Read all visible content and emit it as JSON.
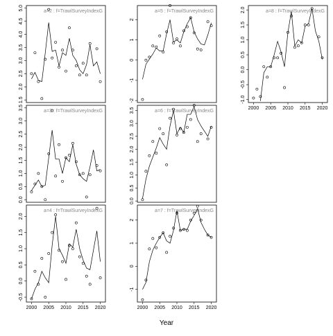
{
  "x_label": "Year",
  "chart_data": [
    {
      "type": "line",
      "title": "a=2  :  f=TrawlSurveyIndexG",
      "x": [
        2000,
        2001,
        2002,
        2003,
        2004,
        2005,
        2006,
        2007,
        2008,
        2009,
        2010,
        2011,
        2012,
        2013,
        2014,
        2015,
        2016,
        2017,
        2018,
        2019,
        2020
      ],
      "xlim": [
        1998.5,
        2021.5
      ],
      "xticks": [
        2000,
        2005,
        2010,
        2015,
        2020
      ],
      "show_x_tick_labels": false,
      "ylim": [
        1.4,
        5.1
      ],
      "yticks": [
        {
          "value": 1.5,
          "label": "1.5"
        },
        {
          "value": 2,
          "label": "2.0"
        },
        {
          "value": 2.5,
          "label": "2.5"
        },
        {
          "value": 3,
          "label": "3.0"
        },
        {
          "value": 3.5,
          "label": "3.5"
        },
        {
          "value": 4,
          "label": "4.0"
        },
        {
          "value": 4.5,
          "label": "4.5"
        },
        {
          "value": 5,
          "label": "5.0"
        }
      ],
      "series": [
        {
          "marker": "circle",
          "color": "#000000",
          "values": [
            2.5,
            3.3,
            2.2,
            1.55,
            3.05,
            4.95,
            3.1,
            3.7,
            2.75,
            3.4,
            2.6,
            4.25,
            3.4,
            2.8,
            2.45,
            2.9,
            2.45,
            3.65,
            null,
            3.45,
            2.2
          ]
        },
        {
          "marker": "none",
          "color": "#000000",
          "values": [
            2.3,
            2.55,
            2.25,
            2.2,
            3.3,
            4.45,
            3.35,
            3.4,
            2.8,
            3.3,
            3.2,
            3.85,
            3.2,
            3.0,
            2.65,
            2.5,
            2.85,
            3.6,
            2.8,
            2.95,
            2.5
          ]
        }
      ]
    },
    {
      "type": "line",
      "title": "a=3  :  f=TrawlSurveyIndexG",
      "x": [
        2000,
        2001,
        2002,
        2003,
        2004,
        2005,
        2006,
        2007,
        2008,
        2009,
        2010,
        2011,
        2012,
        2013,
        2014,
        2015,
        2016,
        2017,
        2018,
        2019,
        2020
      ],
      "xlim": [
        1998.5,
        2021.5
      ],
      "xticks": [
        2000,
        2005,
        2010,
        2015,
        2020
      ],
      "show_x_tick_labels": false,
      "ylim": [
        -0.1,
        3.6
      ],
      "yticks": [
        {
          "value": 0,
          "label": "0.0"
        },
        {
          "value": 0.5,
          "label": "0.5"
        },
        {
          "value": 1,
          "label": "1.0"
        },
        {
          "value": 1.5,
          "label": "1.5"
        },
        {
          "value": 2,
          "label": "2.0"
        },
        {
          "value": 2.5,
          "label": "2.5"
        },
        {
          "value": 3,
          "label": "3.0"
        },
        {
          "value": 3.5,
          "label": "3.5"
        }
      ],
      "series": [
        {
          "marker": "circle",
          "color": "#000000",
          "values": [
            0.3,
            0.6,
            1.0,
            0.5,
            0.0,
            1.75,
            3.4,
            0.9,
            2.1,
            0.7,
            1.6,
            1.7,
            2.15,
            1.45,
            0.95,
            1.0,
            0.1,
            0.95,
            null,
            1.3,
            1.1
          ]
        },
        {
          "marker": "none",
          "color": "#000000",
          "values": [
            0.35,
            0.55,
            0.75,
            0.5,
            0.55,
            1.6,
            2.65,
            1.55,
            1.55,
            1.0,
            1.6,
            1.45,
            2.1,
            1.35,
            0.95,
            0.8,
            0.7,
            1.25,
            1.9,
            1.1,
            1.15
          ]
        }
      ]
    },
    {
      "type": "line",
      "title": "a=4  :  f=TrawlSurveyIndexG",
      "x": [
        2000,
        2001,
        2002,
        2003,
        2004,
        2005,
        2006,
        2007,
        2008,
        2009,
        2010,
        2011,
        2012,
        2013,
        2014,
        2015,
        2016,
        2017,
        2018,
        2019,
        2020
      ],
      "xlim": [
        1998.5,
        2021.5
      ],
      "xticks": [
        2000,
        2005,
        2010,
        2015,
        2020
      ],
      "show_x_tick_labels": true,
      "ylim": [
        -0.65,
        2.35
      ],
      "yticks": [
        {
          "value": -0.5,
          "label": "-0.5"
        },
        {
          "value": 0,
          "label": "0.0"
        },
        {
          "value": 0.5,
          "label": "0.5"
        },
        {
          "value": 1,
          "label": "1.0"
        },
        {
          "value": 1.5,
          "label": "1.5"
        },
        {
          "value": 2,
          "label": "2.0"
        }
      ],
      "series": [
        {
          "marker": "circle",
          "color": "#000000",
          "values": [
            -0.55,
            0.3,
            -0.1,
            0.7,
            -0.5,
            0.85,
            1.5,
            2.05,
            0.95,
            0.6,
            0.05,
            1.1,
            1.0,
            1.8,
            0.75,
            0.55,
            0.15,
            -0.1,
            null,
            2.25,
            0.1
          ]
        },
        {
          "marker": "none",
          "color": "#000000",
          "values": [
            -0.55,
            -0.25,
            -0.05,
            0.3,
            0.1,
            -0.05,
            1.1,
            2.0,
            1.0,
            0.8,
            0.55,
            1.15,
            1.05,
            1.6,
            1.0,
            0.65,
            0.4,
            0.35,
            0.95,
            1.55,
            0.6
          ]
        }
      ]
    },
    {
      "type": "line",
      "title": "a=5  :  f=TrawlSurveyIndexG",
      "x": [
        2000,
        2001,
        2002,
        2003,
        2004,
        2005,
        2006,
        2007,
        2008,
        2009,
        2010,
        2011,
        2012,
        2013,
        2014,
        2015,
        2016,
        2017,
        2018,
        2019,
        2020
      ],
      "xlim": [
        1998.5,
        2021.5
      ],
      "xticks": [
        2000,
        2005,
        2010,
        2015,
        2020
      ],
      "show_x_tick_labels": false,
      "ylim": [
        -2.1,
        2.7
      ],
      "yticks": [
        -2,
        -1,
        0,
        1,
        2
      ],
      "series": [
        {
          "marker": "circle",
          "color": "#000000",
          "values": [
            -1.95,
            0.0,
            0.15,
            0.7,
            0.65,
            1.2,
            0.4,
            1.4,
            2.7,
            0.85,
            1.05,
            0.7,
            1.45,
            1.65,
            2.1,
            1.35,
            0.55,
            0.5,
            null,
            1.9,
            1.7
          ]
        },
        {
          "marker": "none",
          "color": "#000000",
          "values": [
            -0.95,
            -0.2,
            0.05,
            0.3,
            0.6,
            0.45,
            0.45,
            1.3,
            2.0,
            0.9,
            1.0,
            0.85,
            1.4,
            1.8,
            2.1,
            1.4,
            1.05,
            0.8,
            0.75,
            1.25,
            1.85
          ]
        }
      ]
    },
    {
      "type": "line",
      "title": "a=6  :  f=TrawlSurveyIndexG",
      "x": [
        2000,
        2001,
        2002,
        2003,
        2004,
        2005,
        2006,
        2007,
        2008,
        2009,
        2010,
        2011,
        2012,
        2013,
        2014,
        2015,
        2016,
        2017,
        2018,
        2019,
        2020
      ],
      "xlim": [
        1998.5,
        2021.5
      ],
      "xticks": [
        2000,
        2005,
        2010,
        2015,
        2020
      ],
      "show_x_tick_labels": false,
      "ylim": [
        -0.05,
        3.7
      ],
      "yticks": [
        {
          "value": 0,
          "label": "0.0"
        },
        {
          "value": 0.5,
          "label": "0.5"
        },
        {
          "value": 1,
          "label": "1.0"
        },
        {
          "value": 1.5,
          "label": "1.5"
        },
        {
          "value": 2,
          "label": "2.0"
        },
        {
          "value": 2.5,
          "label": "2.5"
        },
        {
          "value": 3,
          "label": "3.0"
        },
        {
          "value": 3.5,
          "label": "3.5"
        }
      ],
      "series": [
        {
          "marker": "circle",
          "color": "#000000",
          "values": [
            0.05,
            1.15,
            1.75,
            2.3,
            1.85,
            2.8,
            2.6,
            1.4,
            3.2,
            3.55,
            2.55,
            2.8,
            2.65,
            2.85,
            3.15,
            3.7,
            2.3,
            2.6,
            null,
            2.4,
            2.85
          ]
        },
        {
          "marker": "none",
          "color": "#000000",
          "values": [
            0.1,
            0.85,
            1.35,
            1.7,
            2.05,
            2.45,
            2.2,
            2.0,
            2.9,
            3.5,
            2.6,
            2.85,
            2.65,
            3.35,
            3.35,
            3.65,
            3.15,
            2.9,
            2.7,
            2.5,
            2.9
          ]
        }
      ]
    },
    {
      "type": "line",
      "title": "a=7  :  f=TrawlSurveyIndexG",
      "x": [
        2000,
        2001,
        2002,
        2003,
        2004,
        2005,
        2006,
        2007,
        2008,
        2009,
        2010,
        2011,
        2012,
        2013,
        2014,
        2015,
        2016,
        2017,
        2018,
        2019,
        2020
      ],
      "xlim": [
        1998.5,
        2021.5
      ],
      "xticks": [
        2000,
        2005,
        2010,
        2015,
        2020
      ],
      "show_x_tick_labels": true,
      "ylim": [
        -1.55,
        2.65
      ],
      "yticks": [
        -1,
        0,
        1,
        2
      ],
      "series": [
        {
          "marker": "circle",
          "color": "#000000",
          "values": [
            -1.45,
            -0.6,
            0.75,
            1.2,
            0.8,
            1.25,
            1.45,
            0.6,
            1.3,
            1.65,
            2.3,
            1.55,
            1.6,
            1.55,
            2.0,
            2.3,
            2.6,
            2.0,
            null,
            1.35,
            1.25
          ]
        },
        {
          "marker": "none",
          "color": "#000000",
          "values": [
            -1.0,
            -0.7,
            0.2,
            0.7,
            1.0,
            1.25,
            1.45,
            1.1,
            1.0,
            1.55,
            2.4,
            1.55,
            1.6,
            1.6,
            1.95,
            2.2,
            2.5,
            1.9,
            1.6,
            1.35,
            1.25
          ]
        }
      ]
    },
    {
      "type": "line",
      "title": "a=8  :  f=TrawlSurveyIndexG",
      "x": [
        2000,
        2001,
        2002,
        2003,
        2004,
        2005,
        2006,
        2007,
        2008,
        2009,
        2010,
        2011,
        2012,
        2013,
        2014,
        2015,
        2016,
        2017,
        2018,
        2019,
        2020
      ],
      "xlim": [
        1998.5,
        2021.5
      ],
      "xticks": [
        2000,
        2005,
        2010,
        2015,
        2020
      ],
      "show_x_tick_labels": true,
      "ylim": [
        -1.1,
        2.15
      ],
      "yticks": [
        {
          "value": -1,
          "label": "-1.0"
        },
        {
          "value": -0.5,
          "label": "-0.5"
        },
        {
          "value": 0,
          "label": "0.0"
        },
        {
          "value": 0.5,
          "label": "0.5"
        },
        {
          "value": 1,
          "label": "1.0"
        },
        {
          "value": 1.5,
          "label": "1.5"
        },
        {
          "value": 2,
          "label": "2.0"
        }
      ],
      "series": [
        {
          "marker": "circle",
          "color": "#000000",
          "values": [
            -0.95,
            -0.65,
            -0.9,
            0.1,
            -0.25,
            0.1,
            0.4,
            0.4,
            0.55,
            -0.6,
            1.25,
            1.8,
            0.75,
            0.8,
            0.9,
            1.5,
            1.5,
            2.05,
            null,
            1.1,
            0.4
          ]
        },
        {
          "marker": "none",
          "color": "#000000",
          "values": [
            null,
            null,
            -1.05,
            -0.1,
            0.1,
            0.1,
            0.5,
            0.95,
            0.6,
            0.1,
            1.25,
            1.95,
            0.8,
            1.0,
            0.9,
            1.45,
            1.55,
            2.05,
            1.3,
            0.95,
            0.35
          ]
        }
      ]
    }
  ]
}
